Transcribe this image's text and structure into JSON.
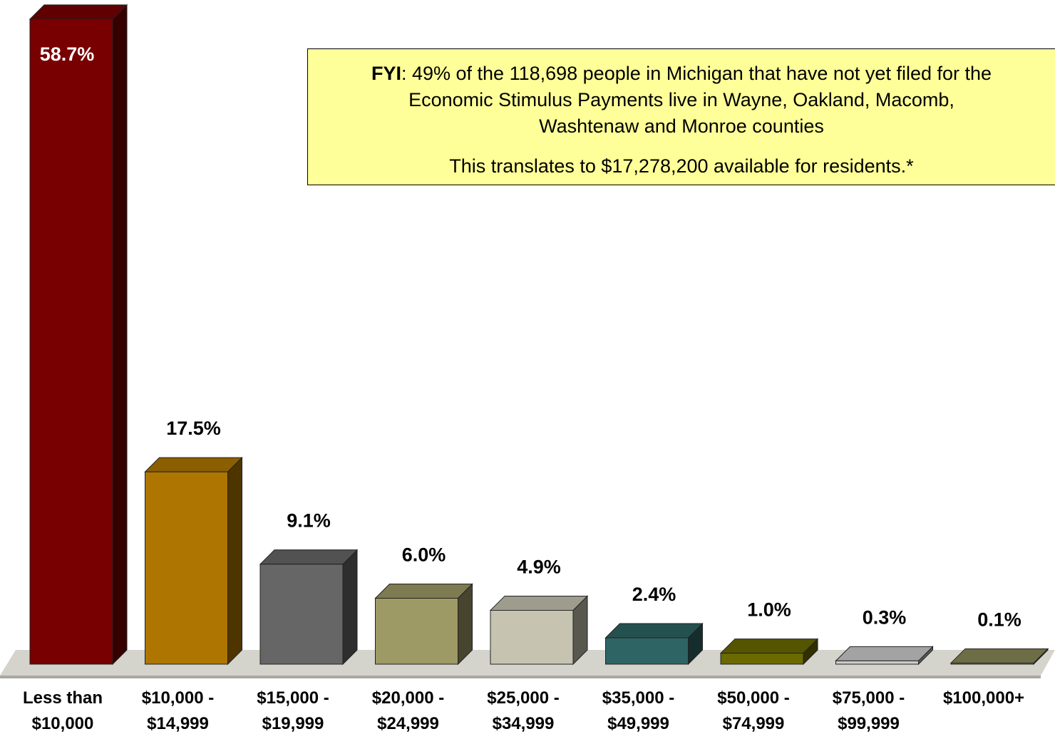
{
  "chart_data": {
    "type": "bar3d",
    "categories": [
      "Less than $10,000",
      "$10,000 - $14,999",
      "$15,000 - $19,999",
      "$20,000 - $24,999",
      "$25,000 - $34,999",
      "$35,000 - $49,999",
      "$50,000 - $74,999",
      "$75,000 - $99,999",
      "$100,000+"
    ],
    "values": [
      58.7,
      17.5,
      9.1,
      6.0,
      4.9,
      2.4,
      1.0,
      0.3,
      0.1
    ],
    "value_labels": [
      "58.7%",
      "17.5%",
      "9.1%",
      "6.0%",
      "4.9%",
      "2.4%",
      "1.0%",
      "0.3%",
      "0.1%"
    ],
    "colors": [
      "#780000",
      "#ae7600",
      "#666666",
      "#9e9a66",
      "#c6c4b0",
      "#2e6464",
      "#6a6a00",
      "#cccccc",
      "#8a8a58"
    ],
    "annotation": {
      "lead": "FYI",
      "lines": [
        ": 49% of the 118,698 people in Michigan that have not yet filed for the",
        "Economic Stimulus Payments live in Wayne, Oakland, Macomb,",
        "Washtenaw and Monroe counties"
      ],
      "note": "This translates to $17,278,200 available for residents.*"
    }
  }
}
